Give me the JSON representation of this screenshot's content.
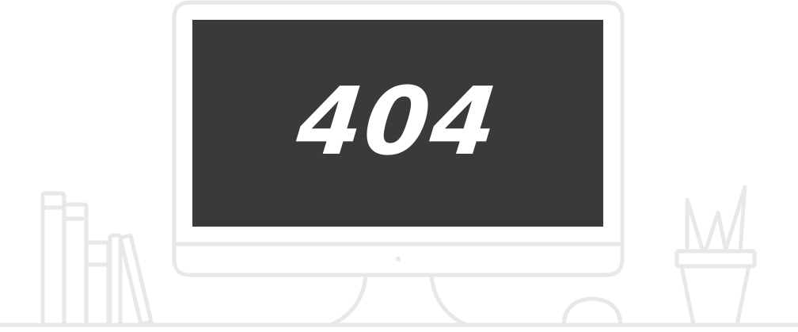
{
  "error": {
    "code": "404"
  },
  "illustration": {
    "line_color": "#e6e8ea",
    "screen_color": "#3a3a3a",
    "text_color": "#ffffff",
    "items": [
      "monitor",
      "books",
      "pencil-cup",
      "mouse",
      "desk"
    ]
  }
}
